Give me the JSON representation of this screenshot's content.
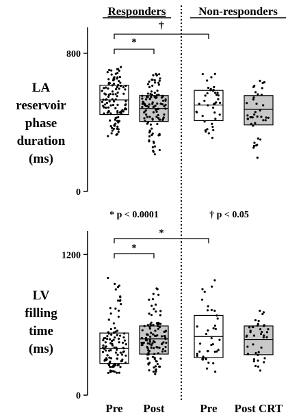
{
  "header": {
    "responders": "Responders",
    "non_responders": "Non-responders"
  },
  "panels": [
    {
      "label_lines": [
        "LA",
        "reservoir",
        "phase",
        "duration",
        "(ms)"
      ],
      "significance": [
        {
          "from": "Responders Pre",
          "to": "Responders Post",
          "symbol": "*"
        },
        {
          "from": "Responders Pre",
          "to": "Non-responders Pre",
          "symbol": "†"
        }
      ]
    },
    {
      "label_lines": [
        "LV",
        "filling",
        "time",
        "(ms)"
      ],
      "significance": [
        {
          "from": "Responders Pre",
          "to": "Responders Post",
          "symbol": "*"
        },
        {
          "from": "Responders Pre",
          "to": "Non-responders Pre",
          "symbol": "*"
        }
      ]
    }
  ],
  "legend_notes": [
    "* p < 0.0001",
    "† p < 0.05"
  ],
  "x_labels": [
    "Pre",
    "Post",
    "Pre",
    "Post CRT"
  ],
  "colors": {
    "pre_fill": "#ffffff",
    "post_fill": "#c8c8c8",
    "dots": "#000000"
  },
  "chart_data": [
    {
      "type": "box",
      "title": "",
      "ylabel": "LA reservoir phase duration (ms)",
      "yticks": [
        0,
        800
      ],
      "ylim": [
        0,
        950
      ],
      "categories": [
        "Responders Pre",
        "Responders Post",
        "Non-responders Pre",
        "Non-responders Post"
      ],
      "boxes": [
        {
          "q1": 445,
          "median": 530,
          "q3": 615,
          "min": 320,
          "max": 720,
          "n": 110
        },
        {
          "q1": 405,
          "median": 480,
          "q3": 555,
          "min": 215,
          "max": 680,
          "n": 110
        },
        {
          "q1": 410,
          "median": 500,
          "q3": 585,
          "min": 310,
          "max": 680,
          "n": 40
        },
        {
          "q1": 385,
          "median": 475,
          "q3": 555,
          "min": 195,
          "max": 640,
          "n": 40
        }
      ]
    },
    {
      "type": "box",
      "title": "",
      "ylabel": "LV filling time (ms)",
      "yticks": [
        0,
        1200
      ],
      "ylim": [
        0,
        1400
      ],
      "categories": [
        "Responders Pre",
        "Responders Post",
        "Non-responders Pre",
        "Non-responders Post"
      ],
      "boxes": [
        {
          "q1": 270,
          "median": 400,
          "q3": 530,
          "min": 190,
          "max": 1000,
          "n": 110
        },
        {
          "q1": 350,
          "median": 480,
          "q3": 590,
          "min": 180,
          "max": 910,
          "n": 110
        },
        {
          "q1": 320,
          "median": 500,
          "q3": 680,
          "min": 200,
          "max": 980,
          "n": 40
        },
        {
          "q1": 345,
          "median": 475,
          "q3": 590,
          "min": 210,
          "max": 720,
          "n": 40
        }
      ]
    }
  ]
}
